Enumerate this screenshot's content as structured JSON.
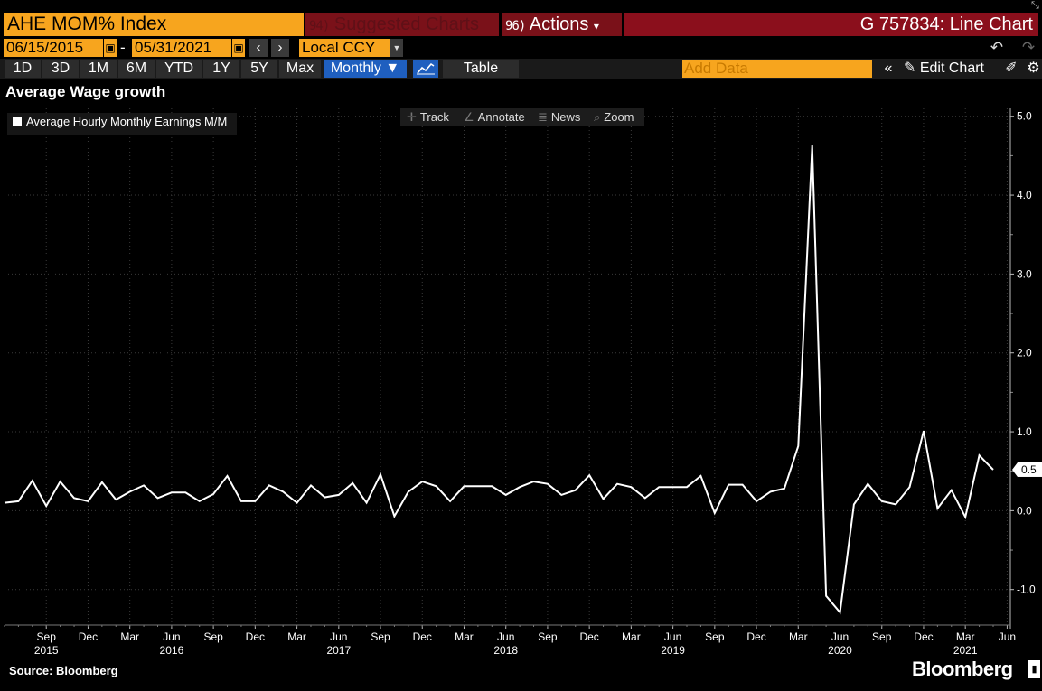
{
  "header": {
    "ticker": "AHE MOM% Index",
    "suggested_code": "94)",
    "suggested_label": "Suggested Charts",
    "actions_code": "96)",
    "actions_label": "Actions",
    "actions_caret": "▾",
    "graph_title": "G 757834: Line Chart"
  },
  "date_range": {
    "start": "06/15/2015",
    "separator": "-",
    "end": "05/31/2021",
    "currency": "Local CCY"
  },
  "toolbar": {
    "ranges": [
      "1D",
      "3D",
      "1M",
      "6M",
      "YTD",
      "1Y",
      "5Y",
      "Max"
    ],
    "frequency": "Monthly ▼",
    "table_label": "Table",
    "add_data_placeholder": "Add Data",
    "edit_chart_label": "Edit Chart"
  },
  "chart_tools": {
    "track": "Track",
    "annotate": "Annotate",
    "news": "News",
    "zoom": "Zoom"
  },
  "chart_title": "Average Wage growth",
  "source": "Source: Bloomberg",
  "brand": "Bloomberg",
  "colors": {
    "accent_orange": "#f7a51e",
    "header_red": "#8b0f1c",
    "selected_blue": "#1f5fbf",
    "line": "#ffffff",
    "background": "#000000"
  },
  "chart_data": {
    "type": "line",
    "title": "Average Wage growth",
    "series": [
      {
        "name": "Average Hourly Monthly Earnings M/M",
        "x": [
          "2015-06",
          "2015-07",
          "2015-08",
          "2015-09",
          "2015-10",
          "2015-11",
          "2015-12",
          "2016-01",
          "2016-02",
          "2016-03",
          "2016-04",
          "2016-05",
          "2016-06",
          "2016-07",
          "2016-08",
          "2016-09",
          "2016-10",
          "2016-11",
          "2016-12",
          "2017-01",
          "2017-02",
          "2017-03",
          "2017-04",
          "2017-05",
          "2017-06",
          "2017-07",
          "2017-08",
          "2017-09",
          "2017-10",
          "2017-11",
          "2017-12",
          "2018-01",
          "2018-02",
          "2018-03",
          "2018-04",
          "2018-05",
          "2018-06",
          "2018-07",
          "2018-08",
          "2018-09",
          "2018-10",
          "2018-11",
          "2018-12",
          "2019-01",
          "2019-02",
          "2019-03",
          "2019-04",
          "2019-05",
          "2019-06",
          "2019-07",
          "2019-08",
          "2019-09",
          "2019-10",
          "2019-11",
          "2019-12",
          "2020-01",
          "2020-02",
          "2020-03",
          "2020-04",
          "2020-05",
          "2020-06",
          "2020-07",
          "2020-08",
          "2020-09",
          "2020-10",
          "2020-11",
          "2020-12",
          "2021-01",
          "2021-02",
          "2021-03",
          "2021-04",
          "2021-05"
        ],
        "values": [
          0.1,
          0.12,
          0.38,
          0.06,
          0.37,
          0.16,
          0.12,
          0.36,
          0.14,
          0.24,
          0.32,
          0.16,
          0.23,
          0.23,
          0.12,
          0.21,
          0.44,
          0.12,
          0.12,
          0.32,
          0.24,
          0.1,
          0.32,
          0.17,
          0.2,
          0.35,
          0.1,
          0.46,
          -0.07,
          0.24,
          0.37,
          0.31,
          0.12,
          0.31,
          0.31,
          0.31,
          0.2,
          0.3,
          0.37,
          0.34,
          0.2,
          0.26,
          0.45,
          0.15,
          0.34,
          0.3,
          0.16,
          0.3,
          0.3,
          0.3,
          0.44,
          -0.03,
          0.33,
          0.33,
          0.12,
          0.24,
          0.28,
          0.82,
          4.63,
          -1.08,
          -1.29,
          0.08,
          0.34,
          0.12,
          0.08,
          0.3,
          1.01,
          0.03,
          0.26,
          -0.08,
          0.7,
          0.52
        ]
      }
    ],
    "last_value_label": "0.5",
    "ylim": [
      -1.45,
      5.1
    ],
    "y_ticks": [
      5.0,
      4.0,
      3.0,
      2.0,
      1.0,
      0.0,
      -1.0
    ],
    "y_tick_labels": [
      "5.0",
      "4.0",
      "3.0",
      "2.0",
      "1.0",
      "0.0",
      "-1.0"
    ],
    "x_month_ticks": [
      {
        "date": "2015-09",
        "label": "Sep"
      },
      {
        "date": "2015-12",
        "label": "Dec"
      },
      {
        "date": "2016-03",
        "label": "Mar"
      },
      {
        "date": "2016-06",
        "label": "Jun"
      },
      {
        "date": "2016-09",
        "label": "Sep"
      },
      {
        "date": "2016-12",
        "label": "Dec"
      },
      {
        "date": "2017-03",
        "label": "Mar"
      },
      {
        "date": "2017-06",
        "label": "Jun"
      },
      {
        "date": "2017-09",
        "label": "Sep"
      },
      {
        "date": "2017-12",
        "label": "Dec"
      },
      {
        "date": "2018-03",
        "label": "Mar"
      },
      {
        "date": "2018-06",
        "label": "Jun"
      },
      {
        "date": "2018-09",
        "label": "Sep"
      },
      {
        "date": "2018-12",
        "label": "Dec"
      },
      {
        "date": "2019-03",
        "label": "Mar"
      },
      {
        "date": "2019-06",
        "label": "Jun"
      },
      {
        "date": "2019-09",
        "label": "Sep"
      },
      {
        "date": "2019-12",
        "label": "Dec"
      },
      {
        "date": "2020-03",
        "label": "Mar"
      },
      {
        "date": "2020-06",
        "label": "Jun"
      },
      {
        "date": "2020-09",
        "label": "Sep"
      },
      {
        "date": "2020-12",
        "label": "Dec"
      },
      {
        "date": "2021-03",
        "label": "Mar"
      },
      {
        "date": "2021-06",
        "label": "Jun"
      }
    ],
    "x_year_labels": [
      {
        "date": "2015-09",
        "label": "2015"
      },
      {
        "date": "2016-06",
        "label": "2016"
      },
      {
        "date": "2017-06",
        "label": "2017"
      },
      {
        "date": "2018-06",
        "label": "2018"
      },
      {
        "date": "2019-06",
        "label": "2019"
      },
      {
        "date": "2020-06",
        "label": "2020"
      },
      {
        "date": "2021-03",
        "label": "2021"
      }
    ],
    "grid": true,
    "legend": "top-left"
  }
}
